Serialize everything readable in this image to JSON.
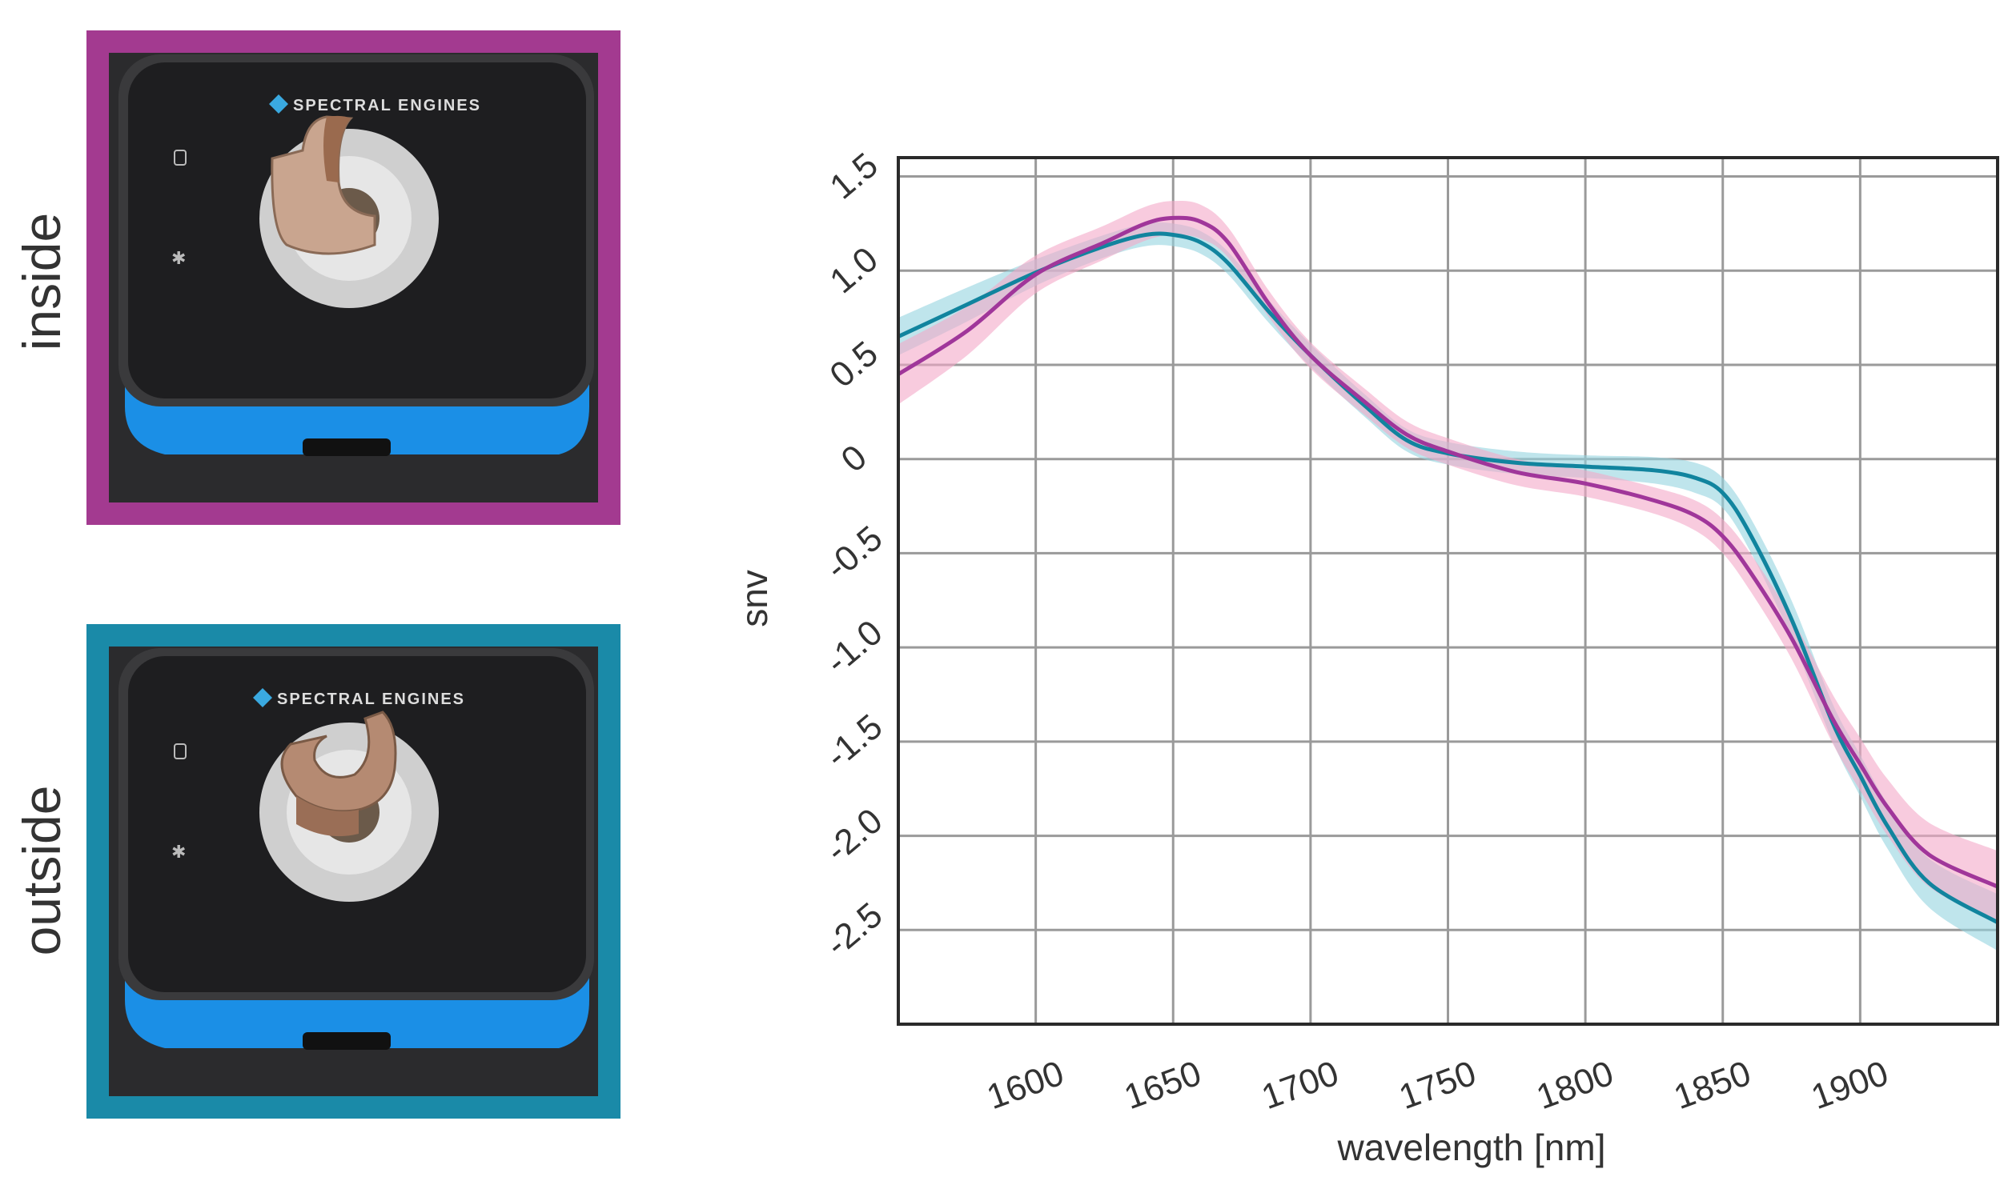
{
  "photos": [
    {
      "label": "inside",
      "frame_color": "#a33a90",
      "brand": "SPECTRAL ENGINES"
    },
    {
      "label": "outside",
      "frame_color": "#1a8aa8",
      "brand": "SPECTRAL ENGINES"
    }
  ],
  "colors": {
    "inside": "#a0369a",
    "inside_band": "#f4a8c8",
    "outside": "#11849e",
    "outside_band": "#94d4e0",
    "device_top": "#1e1e20",
    "device_base": "#1b8fe6",
    "background": "#2b2b2d"
  },
  "chart_data": {
    "type": "line",
    "title": "",
    "xlabel": "wavelength [nm]",
    "ylabel": "snv",
    "xlim": [
      1550,
      1950
    ],
    "ylim": [
      -3.0,
      1.6
    ],
    "xticks": [
      1600,
      1650,
      1700,
      1750,
      1800,
      1850,
      1900
    ],
    "xtick_labels": [
      "1600",
      "1650",
      "1700",
      "1750",
      "1800",
      "1850",
      "1900"
    ],
    "yticks": [
      1.5,
      1.0,
      0.5,
      0,
      -0.5,
      -1.0,
      -1.5,
      -2.0,
      -2.5
    ],
    "ytick_labels": [
      "1.5",
      "1.0",
      "0.5",
      "0",
      "-0.5",
      "-1.0",
      "-1.5",
      "-2.0",
      "-2.5"
    ],
    "grid": true,
    "x": [
      1550,
      1575,
      1600,
      1625,
      1640,
      1650,
      1660,
      1670,
      1685,
      1700,
      1720,
      1735,
      1750,
      1775,
      1800,
      1825,
      1840,
      1850,
      1860,
      1875,
      1890,
      1900,
      1910,
      1925,
      1950
    ],
    "series": [
      {
        "key": "outside",
        "values": [
          0.65,
          0.82,
          0.99,
          1.13,
          1.19,
          1.19,
          1.15,
          1.04,
          0.78,
          0.55,
          0.28,
          0.1,
          0.03,
          -0.02,
          -0.04,
          -0.06,
          -0.1,
          -0.18,
          -0.4,
          -0.85,
          -1.4,
          -1.68,
          -1.95,
          -2.25,
          -2.46
        ],
        "band": [
          0.1,
          0.09,
          0.07,
          0.06,
          0.06,
          0.06,
          0.06,
          0.06,
          0.06,
          0.06,
          0.06,
          0.06,
          0.06,
          0.06,
          0.06,
          0.07,
          0.08,
          0.08,
          0.09,
          0.1,
          0.1,
          0.11,
          0.12,
          0.13,
          0.15
        ]
      },
      {
        "key": "inside",
        "values": [
          0.45,
          0.68,
          0.98,
          1.15,
          1.25,
          1.28,
          1.26,
          1.15,
          0.82,
          0.55,
          0.3,
          0.13,
          0.04,
          -0.07,
          -0.13,
          -0.22,
          -0.3,
          -0.41,
          -0.6,
          -0.95,
          -1.38,
          -1.62,
          -1.85,
          -2.1,
          -2.27
        ],
        "band": [
          0.16,
          0.13,
          0.1,
          0.09,
          0.09,
          0.09,
          0.09,
          0.08,
          0.07,
          0.07,
          0.07,
          0.07,
          0.07,
          0.07,
          0.07,
          0.07,
          0.08,
          0.09,
          0.1,
          0.11,
          0.13,
          0.14,
          0.15,
          0.17,
          0.19
        ]
      }
    ]
  }
}
